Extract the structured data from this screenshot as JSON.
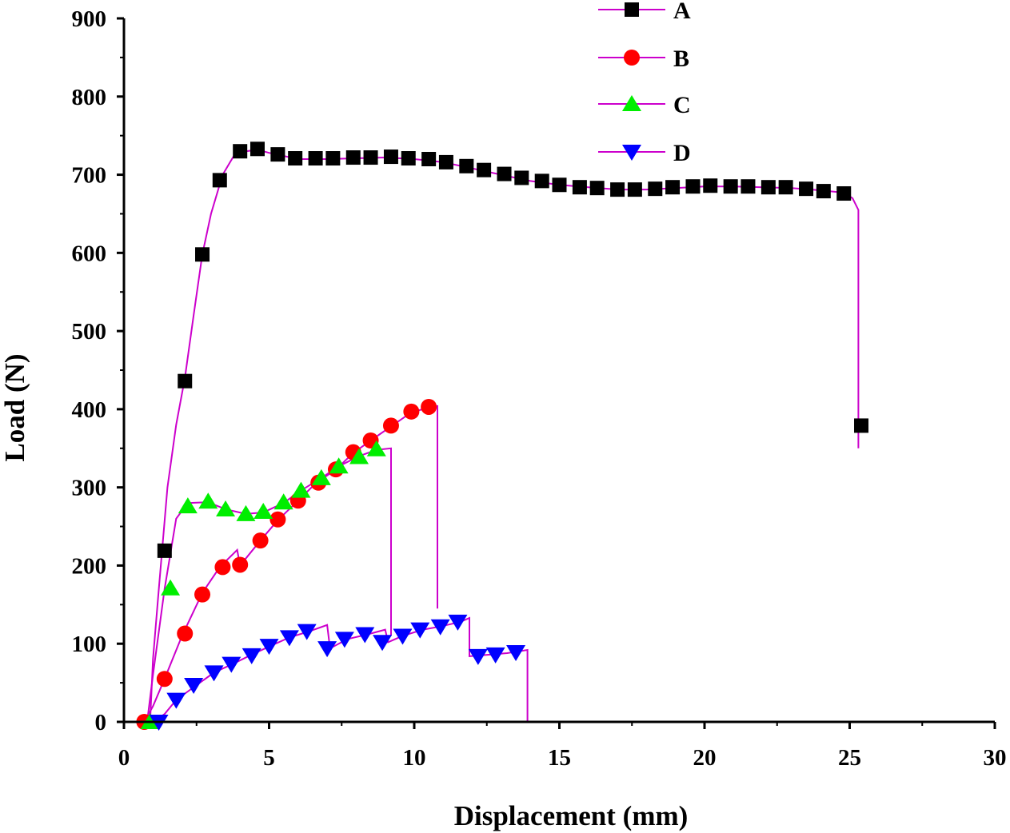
{
  "chart_data": {
    "type": "line",
    "title": "",
    "xlabel": "Displacement (mm)",
    "ylabel": "Load (N)",
    "xlim": [
      0,
      30
    ],
    "ylim": [
      0,
      900
    ],
    "x_ticks": [
      0,
      5,
      10,
      15,
      20,
      25,
      30
    ],
    "y_ticks": [
      0,
      100,
      200,
      300,
      400,
      500,
      600,
      700,
      800,
      900
    ],
    "grid": false,
    "legend_position": "top-right",
    "line_color": "#cc00cc",
    "series": [
      {
        "name": "A",
        "marker": "square",
        "color": "#000000",
        "line": [
          [
            0.9,
            0
          ],
          [
            1.0,
            80
          ],
          [
            1.2,
            170
          ],
          [
            1.5,
            300
          ],
          [
            1.8,
            380
          ],
          [
            2.1,
            440
          ],
          [
            2.4,
            520
          ],
          [
            2.7,
            598
          ],
          [
            3.0,
            650
          ],
          [
            3.4,
            700
          ],
          [
            3.8,
            725
          ],
          [
            4.2,
            730
          ],
          [
            4.6,
            732
          ],
          [
            5.0,
            728
          ],
          [
            6.0,
            720
          ],
          [
            7.0,
            720
          ],
          [
            8.0,
            721
          ],
          [
            9.0,
            722
          ],
          [
            10.0,
            720
          ],
          [
            11.0,
            716
          ],
          [
            12.0,
            708
          ],
          [
            13.0,
            700
          ],
          [
            14.0,
            692
          ],
          [
            15.0,
            687
          ],
          [
            16.0,
            684
          ],
          [
            17.0,
            681
          ],
          [
            18.0,
            681
          ],
          [
            19.0,
            683
          ],
          [
            20.0,
            685
          ],
          [
            21.0,
            685
          ],
          [
            22.0,
            684
          ],
          [
            23.0,
            683
          ],
          [
            24.0,
            680
          ],
          [
            24.8,
            677
          ],
          [
            25.1,
            670
          ],
          [
            25.3,
            655
          ],
          [
            25.3,
            350
          ]
        ],
        "points": [
          [
            1.4,
            219
          ],
          [
            2.1,
            436
          ],
          [
            2.7,
            598
          ],
          [
            3.3,
            693
          ],
          [
            4.0,
            730
          ],
          [
            4.6,
            733
          ],
          [
            5.3,
            726
          ],
          [
            5.9,
            721
          ],
          [
            6.6,
            721
          ],
          [
            7.2,
            721
          ],
          [
            7.9,
            722
          ],
          [
            8.5,
            722
          ],
          [
            9.2,
            723
          ],
          [
            9.8,
            721
          ],
          [
            10.5,
            720
          ],
          [
            11.1,
            716
          ],
          [
            11.8,
            711
          ],
          [
            12.4,
            706
          ],
          [
            13.1,
            701
          ],
          [
            13.7,
            696
          ],
          [
            14.4,
            692
          ],
          [
            15.0,
            687
          ],
          [
            15.7,
            684
          ],
          [
            16.3,
            683
          ],
          [
            17.0,
            681
          ],
          [
            17.6,
            681
          ],
          [
            18.3,
            682
          ],
          [
            18.9,
            684
          ],
          [
            19.6,
            685
          ],
          [
            20.2,
            686
          ],
          [
            20.9,
            685
          ],
          [
            21.5,
            685
          ],
          [
            22.2,
            684
          ],
          [
            22.8,
            684
          ],
          [
            23.5,
            682
          ],
          [
            24.1,
            679
          ],
          [
            24.8,
            676
          ],
          [
            25.4,
            379
          ]
        ]
      },
      {
        "name": "B",
        "marker": "circle",
        "color": "#ff0000",
        "line": [
          [
            0.7,
            0
          ],
          [
            1.0,
            20
          ],
          [
            1.4,
            55
          ],
          [
            2.0,
            110
          ],
          [
            2.7,
            165
          ],
          [
            3.3,
            198
          ],
          [
            3.9,
            220
          ],
          [
            4.0,
            200
          ],
          [
            4.7,
            232
          ],
          [
            5.3,
            258
          ],
          [
            6.0,
            283
          ],
          [
            6.6,
            305
          ],
          [
            7.3,
            323
          ],
          [
            7.9,
            344
          ],
          [
            8.5,
            360
          ],
          [
            9.2,
            378
          ],
          [
            9.9,
            396
          ],
          [
            10.5,
            402
          ],
          [
            10.8,
            404
          ],
          [
            10.8,
            145
          ]
        ],
        "points": [
          [
            0.7,
            0
          ],
          [
            1.4,
            55
          ],
          [
            2.1,
            113
          ],
          [
            2.7,
            163
          ],
          [
            3.4,
            198
          ],
          [
            4.0,
            201
          ],
          [
            4.7,
            232
          ],
          [
            5.3,
            259
          ],
          [
            6.0,
            283
          ],
          [
            6.7,
            306
          ],
          [
            7.3,
            323
          ],
          [
            7.9,
            345
          ],
          [
            8.5,
            360
          ],
          [
            9.2,
            379
          ],
          [
            9.9,
            397
          ],
          [
            10.5,
            403
          ]
        ]
      },
      {
        "name": "C",
        "marker": "triangle-up",
        "color": "#00ee00",
        "line": [
          [
            0.8,
            0
          ],
          [
            1.0,
            60
          ],
          [
            1.4,
            170
          ],
          [
            1.8,
            260
          ],
          [
            2.2,
            280
          ],
          [
            2.9,
            281
          ],
          [
            3.5,
            272
          ],
          [
            4.2,
            266
          ],
          [
            4.8,
            268
          ],
          [
            5.5,
            280
          ],
          [
            6.1,
            296
          ],
          [
            6.8,
            312
          ],
          [
            7.4,
            327
          ],
          [
            8.1,
            340
          ],
          [
            8.7,
            348
          ],
          [
            9.2,
            350
          ],
          [
            9.2,
            110
          ]
        ],
        "points": [
          [
            0.9,
            0
          ],
          [
            1.6,
            171
          ],
          [
            2.2,
            276
          ],
          [
            2.9,
            282
          ],
          [
            3.5,
            272
          ],
          [
            4.2,
            266
          ],
          [
            4.8,
            269
          ],
          [
            5.5,
            281
          ],
          [
            6.1,
            296
          ],
          [
            6.8,
            312
          ],
          [
            7.4,
            327
          ],
          [
            8.1,
            339
          ],
          [
            8.7,
            349
          ]
        ]
      },
      {
        "name": "D",
        "marker": "triangle-down",
        "color": "#0000ff",
        "line": [
          [
            1.0,
            0
          ],
          [
            1.4,
            10
          ],
          [
            1.8,
            28
          ],
          [
            2.5,
            47
          ],
          [
            3.1,
            63
          ],
          [
            3.8,
            75
          ],
          [
            4.4,
            86
          ],
          [
            5.1,
            98
          ],
          [
            5.7,
            108
          ],
          [
            6.4,
            116
          ],
          [
            7.0,
            124
          ],
          [
            7.1,
            94
          ],
          [
            7.7,
            106
          ],
          [
            8.4,
            112
          ],
          [
            9.0,
            118
          ],
          [
            9.1,
            102
          ],
          [
            9.6,
            110
          ],
          [
            10.3,
            118
          ],
          [
            10.9,
            122
          ],
          [
            11.6,
            128
          ],
          [
            11.9,
            133
          ],
          [
            11.9,
            84
          ],
          [
            12.6,
            86
          ],
          [
            13.2,
            88
          ],
          [
            13.9,
            92
          ],
          [
            13.9,
            0
          ]
        ],
        "points": [
          [
            1.2,
            0
          ],
          [
            1.8,
            28
          ],
          [
            2.4,
            47
          ],
          [
            3.1,
            63
          ],
          [
            3.7,
            74
          ],
          [
            4.4,
            85
          ],
          [
            5.0,
            97
          ],
          [
            5.7,
            108
          ],
          [
            6.3,
            116
          ],
          [
            7.0,
            94
          ],
          [
            7.6,
            106
          ],
          [
            8.3,
            112
          ],
          [
            8.9,
            102
          ],
          [
            9.6,
            110
          ],
          [
            10.2,
            118
          ],
          [
            10.9,
            122
          ],
          [
            11.5,
            128
          ],
          [
            12.2,
            84
          ],
          [
            12.8,
            86
          ],
          [
            13.5,
            89
          ]
        ]
      }
    ]
  }
}
